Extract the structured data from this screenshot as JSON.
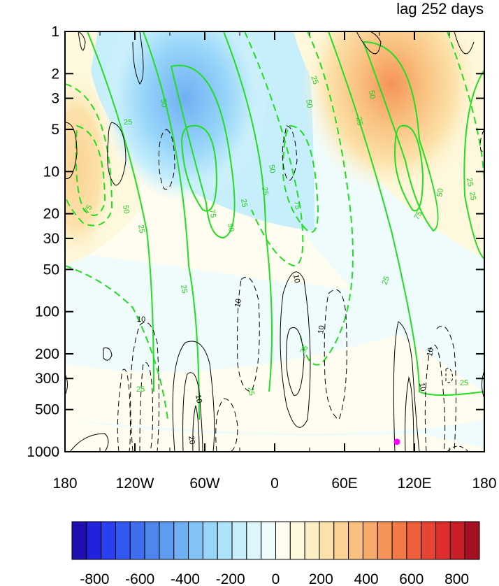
{
  "chart_data": {
    "type": "heatmap",
    "title": "lag 252 days",
    "xlabel": "",
    "ylabel": "",
    "x_range": [
      -180,
      180
    ],
    "x_ticks": [
      {
        "value": -180,
        "label": "180"
      },
      {
        "value": -120,
        "label": "120W"
      },
      {
        "value": -60,
        "label": "60W"
      },
      {
        "value": 0,
        "label": "0"
      },
      {
        "value": 60,
        "label": "60E"
      },
      {
        "value": 120,
        "label": "120E"
      },
      {
        "value": 180,
        "label": "180"
      }
    ],
    "y_scale": "log",
    "y_range": [
      1000,
      1
    ],
    "y_ticks": [
      1,
      2,
      3,
      5,
      10,
      20,
      30,
      50,
      100,
      200,
      300,
      500,
      1000
    ],
    "colorbar": {
      "range": [
        -900,
        900
      ],
      "step": 50,
      "labels": [
        "-800",
        "-600",
        "-400",
        "-200",
        "0",
        "200",
        "400",
        "600",
        "800"
      ],
      "colors": [
        "#1d0fb0",
        "#2222dd",
        "#2a3ef2",
        "#3458f2",
        "#3f6ff0",
        "#4e86ee",
        "#5d9cf0",
        "#6fb0f4",
        "#82c3f7",
        "#97d5f9",
        "#aee3fa",
        "#c6eefb",
        "#dcf6fc",
        "#eefcfd",
        "#fffdf0",
        "#fef8dc",
        "#fdefc4",
        "#fce2aa",
        "#fbd294",
        "#f9c07e",
        "#f7ab6b",
        "#f59358",
        "#f27a48",
        "#ee5f3c",
        "#e84434",
        "#de2d2d",
        "#c81e28",
        "#a50f22"
      ]
    },
    "contour_labels": {
      "green": [
        "25",
        "50",
        "75"
      ],
      "black": [
        "10",
        "20"
      ]
    },
    "marker": {
      "lon": 105,
      "pressure": 850,
      "color": "#ff00ff"
    }
  }
}
